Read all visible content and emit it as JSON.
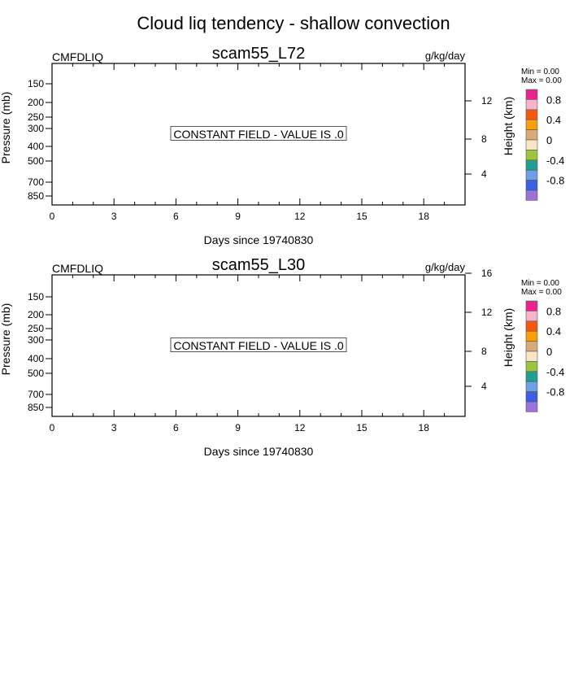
{
  "page_title": "Cloud liq tendency - shallow convection",
  "colorbar_colors": [
    "#e8258f",
    "#f7b6c8",
    "#f25a12",
    "#f7a00b",
    "#d6aa7c",
    "#f7e6c3",
    "#9bc53c",
    "#1f9f93",
    "#6f9fe8",
    "#3b5fe0",
    "#9a72d8"
  ],
  "chart_data": [
    {
      "type": "heatmap",
      "title": "scam55_L72",
      "variable_label": "CMFDLIQ",
      "units_label": "g/kg/day",
      "xlabel": "Days since 19740830",
      "ylabel": "Pressure (mb)",
      "y2label": "Height (km)",
      "x_ticks": [
        "0",
        "3",
        "6",
        "9",
        "12",
        "15",
        "18"
      ],
      "x_range": [
        0,
        20
      ],
      "y_ticks": [
        "150",
        "200",
        "250",
        "300",
        "400",
        "500",
        "700",
        "850"
      ],
      "y2_ticks": [
        "12",
        "8",
        "4"
      ],
      "constant_field_label": "CONSTANT FIELD - VALUE IS .0",
      "colorbar_labels": [
        "0.8",
        "0.4",
        "0",
        "-0.4",
        "-0.8"
      ],
      "min_label": "Min =   0.00",
      "max_label": "Max =   0.00"
    },
    {
      "type": "heatmap",
      "title": "scam55_L30",
      "variable_label": "CMFDLIQ",
      "units_label": "g/kg/day",
      "xlabel": "Days since 19740830",
      "ylabel": "Pressure (mb)",
      "y2label": "Height (km)",
      "x_ticks": [
        "0",
        "3",
        "6",
        "9",
        "12",
        "15",
        "18"
      ],
      "x_range": [
        0,
        20
      ],
      "y_ticks": [
        "150",
        "200",
        "250",
        "300",
        "400",
        "500",
        "700",
        "850"
      ],
      "y2_ticks": [
        "16",
        "12",
        "8",
        "4"
      ],
      "constant_field_label": "CONSTANT FIELD - VALUE IS .0",
      "colorbar_labels": [
        "0.8",
        "0.4",
        "0",
        "-0.4",
        "-0.8"
      ],
      "min_label": "Min =   0.00",
      "max_label": "Max =   0.00"
    }
  ]
}
